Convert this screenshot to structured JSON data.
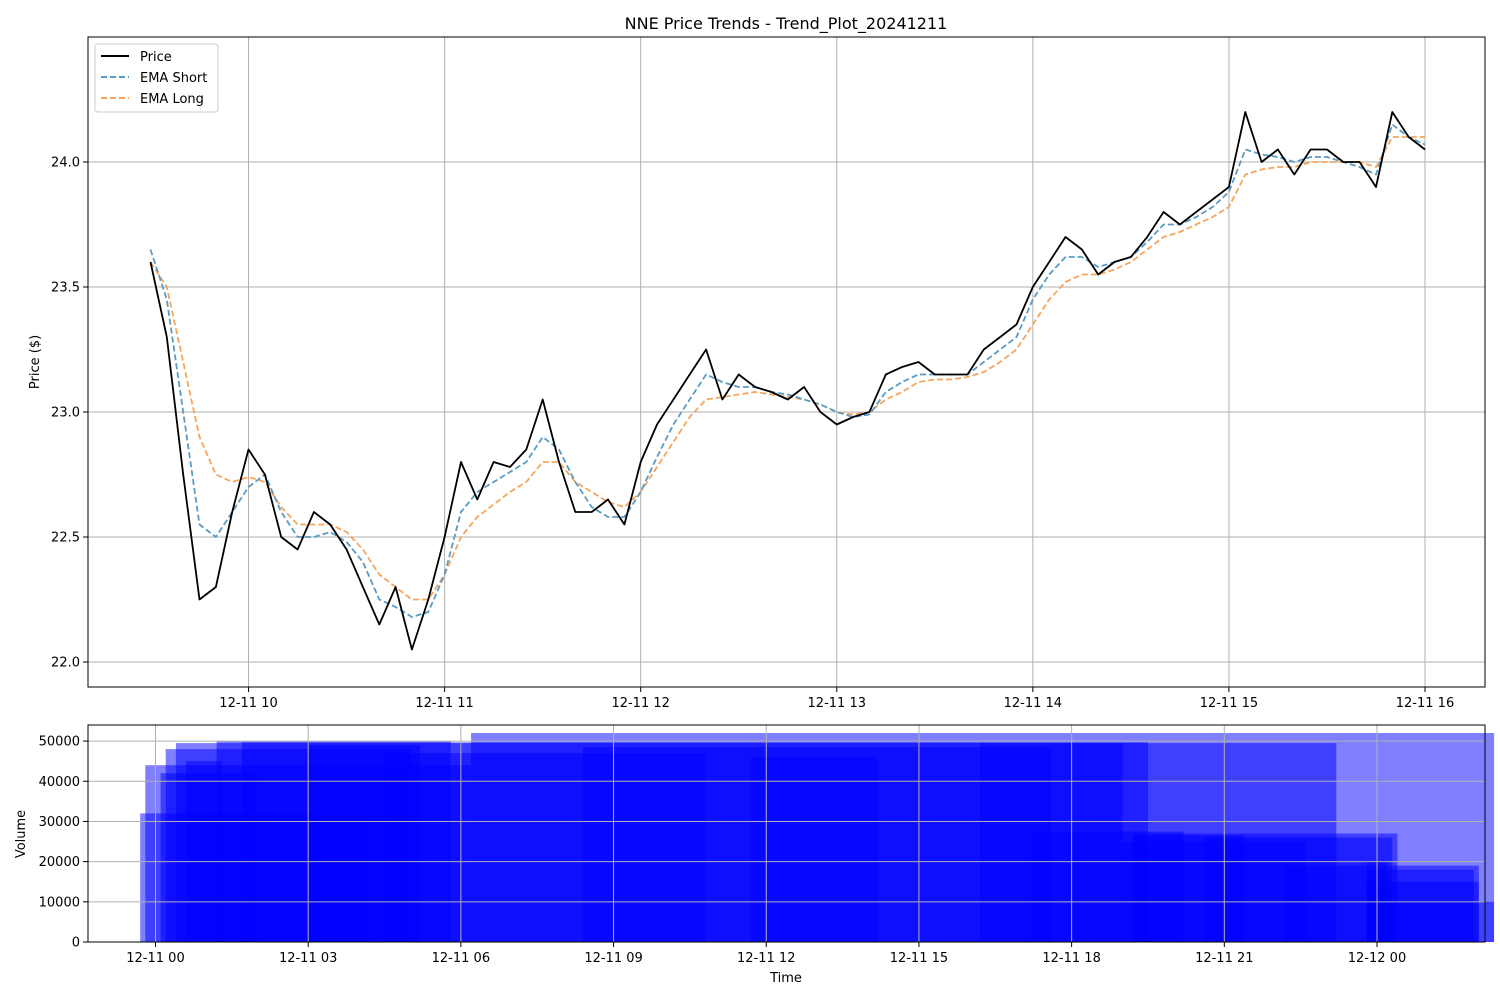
{
  "chart_data": [
    {
      "type": "line",
      "title": "NNE Price Trends - Trend_Plot_20241211",
      "xlabel": "",
      "ylabel": "Price ($)",
      "ylim": [
        21.9,
        24.5
      ],
      "xlim": [
        "2024-12-11 09:30",
        "2024-12-11 16:18"
      ],
      "yticks": [
        "22.0",
        "22.5",
        "23.0",
        "23.5",
        "24.0"
      ],
      "xticks": [
        "12-11 10",
        "12-11 11",
        "12-11 12",
        "12-11 13",
        "12-11 14",
        "12-11 15",
        "12-11 16"
      ],
      "grid": true,
      "legend_position": "top-left",
      "x": [
        "09:30",
        "09:35",
        "09:40",
        "09:45",
        "09:50",
        "09:55",
        "10:00",
        "10:05",
        "10:10",
        "10:15",
        "10:20",
        "10:25",
        "10:30",
        "10:35",
        "10:40",
        "10:45",
        "10:50",
        "10:55",
        "11:00",
        "11:05",
        "11:10",
        "11:15",
        "11:20",
        "11:25",
        "11:30",
        "11:35",
        "11:40",
        "11:45",
        "11:50",
        "11:55",
        "12:00",
        "12:05",
        "12:10",
        "12:15",
        "12:20",
        "12:25",
        "12:30",
        "12:35",
        "12:40",
        "12:45",
        "12:50",
        "12:55",
        "13:00",
        "13:05",
        "13:10",
        "13:15",
        "13:20",
        "13:25",
        "13:30",
        "13:35",
        "13:40",
        "13:45",
        "13:50",
        "13:55",
        "14:00",
        "14:05",
        "14:10",
        "14:15",
        "14:20",
        "14:25",
        "14:30",
        "14:35",
        "14:40",
        "14:45",
        "14:50",
        "14:55",
        "15:00",
        "15:05",
        "15:10",
        "15:15",
        "15:20",
        "15:25",
        "15:30",
        "15:35",
        "15:40",
        "15:45",
        "15:50",
        "15:55",
        "16:00"
      ],
      "series": [
        {
          "name": "Price",
          "color": "#000000",
          "dash": "solid",
          "values": [
            23.6,
            23.3,
            22.75,
            22.25,
            22.3,
            22.6,
            22.85,
            22.75,
            22.5,
            22.45,
            22.6,
            22.55,
            22.45,
            22.3,
            22.15,
            22.3,
            22.05,
            22.25,
            22.5,
            22.8,
            22.65,
            22.8,
            22.78,
            22.85,
            23.05,
            22.8,
            22.6,
            22.6,
            22.65,
            22.55,
            22.8,
            22.95,
            23.05,
            23.15,
            23.25,
            23.05,
            23.15,
            23.1,
            23.08,
            23.05,
            23.1,
            23.0,
            22.95,
            22.98,
            23.0,
            23.15,
            23.18,
            23.2,
            23.15,
            23.15,
            23.15,
            23.25,
            23.3,
            23.35,
            23.5,
            23.6,
            23.7,
            23.65,
            23.55,
            23.6,
            23.62,
            23.7,
            23.8,
            23.75,
            23.8,
            23.85,
            23.9,
            24.2,
            24.0,
            24.05,
            23.95,
            24.05,
            24.05,
            24.0,
            24.0,
            23.9,
            24.2,
            24.1,
            24.05
          ]
        },
        {
          "name": "EMA Short",
          "color": "#5a9bc6",
          "dash": "dashed",
          "values": [
            23.65,
            23.45,
            23.0,
            22.55,
            22.5,
            22.6,
            22.7,
            22.75,
            22.6,
            22.5,
            22.5,
            22.52,
            22.48,
            22.4,
            22.25,
            22.22,
            22.18,
            22.2,
            22.35,
            22.6,
            22.68,
            22.72,
            22.76,
            22.8,
            22.9,
            22.85,
            22.72,
            22.62,
            22.58,
            22.58,
            22.68,
            22.82,
            22.95,
            23.05,
            23.15,
            23.12,
            23.1,
            23.1,
            23.08,
            23.07,
            23.05,
            23.03,
            23.0,
            22.98,
            22.99,
            23.08,
            23.12,
            23.15,
            23.15,
            23.15,
            23.15,
            23.2,
            23.25,
            23.3,
            23.45,
            23.55,
            23.62,
            23.62,
            23.58,
            23.6,
            23.62,
            23.68,
            23.75,
            23.75,
            23.78,
            23.82,
            23.88,
            24.05,
            24.03,
            24.02,
            24.0,
            24.02,
            24.02,
            24.0,
            23.98,
            23.95,
            24.15,
            24.1,
            24.07
          ]
        },
        {
          "name": "EMA Long",
          "color": "#f5a55c",
          "dash": "dashed",
          "values": [
            23.6,
            23.5,
            23.2,
            22.9,
            22.75,
            22.72,
            22.74,
            22.72,
            22.62,
            22.55,
            22.55,
            22.55,
            22.52,
            22.45,
            22.35,
            22.3,
            22.25,
            22.25,
            22.35,
            22.5,
            22.58,
            22.63,
            22.68,
            22.72,
            22.8,
            22.8,
            22.72,
            22.68,
            22.64,
            22.62,
            22.68,
            22.78,
            22.88,
            22.98,
            23.05,
            23.06,
            23.07,
            23.08,
            23.07,
            23.06,
            23.05,
            23.03,
            23.0,
            22.99,
            23.0,
            23.05,
            23.08,
            23.12,
            23.13,
            23.13,
            23.14,
            23.16,
            23.2,
            23.25,
            23.35,
            23.45,
            23.52,
            23.55,
            23.55,
            23.57,
            23.6,
            23.65,
            23.7,
            23.72,
            23.75,
            23.78,
            23.82,
            23.95,
            23.97,
            23.98,
            23.98,
            24.0,
            24.0,
            24.0,
            24.0,
            23.98,
            24.1,
            24.1,
            24.1
          ]
        }
      ]
    },
    {
      "type": "bar",
      "title": "",
      "xlabel": "Time",
      "ylabel": "Volume",
      "ylim": [
        0,
        54000
      ],
      "yticks": [
        "0",
        "10000",
        "20000",
        "30000",
        "40000",
        "50000"
      ],
      "xticks": [
        "12-11 00",
        "12-11 03",
        "12-11 06",
        "12-11 09",
        "12-11 12",
        "12-11 15",
        "12-11 18",
        "12-11 21",
        "12-12 00"
      ],
      "grid": true,
      "bar_color": "#0000ff",
      "bar_opacity": 0.5,
      "bars": [
        {
          "start_h": 23.8,
          "end_h": 26.3,
          "volume": 10000
        },
        {
          "start_h": 23.8,
          "end_h": 26.0,
          "volume": 15000
        },
        {
          "start_h": 23.8,
          "end_h": 25.9,
          "volume": 18000
        },
        {
          "start_h": 23.8,
          "end_h": 24.2,
          "volume": 20000
        },
        {
          "start_h": 22.2,
          "end_h": 26.0,
          "volume": 19000
        },
        {
          "start_h": 20.6,
          "end_h": 24.3,
          "volume": 26000
        },
        {
          "start_h": 19.2,
          "end_h": 24.4,
          "volume": 27000
        },
        {
          "start_h": 19.0,
          "end_h": 22.6,
          "volume": 25000
        },
        {
          "start_h": 19.2,
          "end_h": 21.4,
          "volume": 26500
        },
        {
          "start_h": 16.2,
          "end_h": 23.2,
          "volume": 49500
        },
        {
          "start_h": 6.2,
          "end_h": 26.3,
          "volume": 52000
        },
        {
          "start_h": 1.7,
          "end_h": 19.5,
          "volume": 49700
        },
        {
          "start_h": 0.4,
          "end_h": 19.0,
          "volume": 49500
        },
        {
          "start_h": -0.2,
          "end_h": 6.2,
          "volume": 44000
        },
        {
          "start_h": 0.2,
          "end_h": 5.0,
          "volume": 48000
        },
        {
          "start_h": 1.2,
          "end_h": 5.8,
          "volume": 50000
        },
        {
          "start_h": 3.0,
          "end_h": 5.2,
          "volume": 49000
        },
        {
          "start_h": -0.3,
          "end_h": 4.2,
          "volume": 32000
        },
        {
          "start_h": 0.1,
          "end_h": 2.0,
          "volume": 42000
        },
        {
          "start_h": 0.6,
          "end_h": 1.3,
          "volume": 45000
        },
        {
          "start_h": 4.5,
          "end_h": 10.8,
          "volume": 47000
        },
        {
          "start_h": 8.4,
          "end_h": 17.6,
          "volume": 48500
        },
        {
          "start_h": 11.7,
          "end_h": 14.2,
          "volume": 46000
        },
        {
          "start_h": 17.2,
          "end_h": 20.2,
          "volume": 27500
        }
      ]
    }
  ]
}
